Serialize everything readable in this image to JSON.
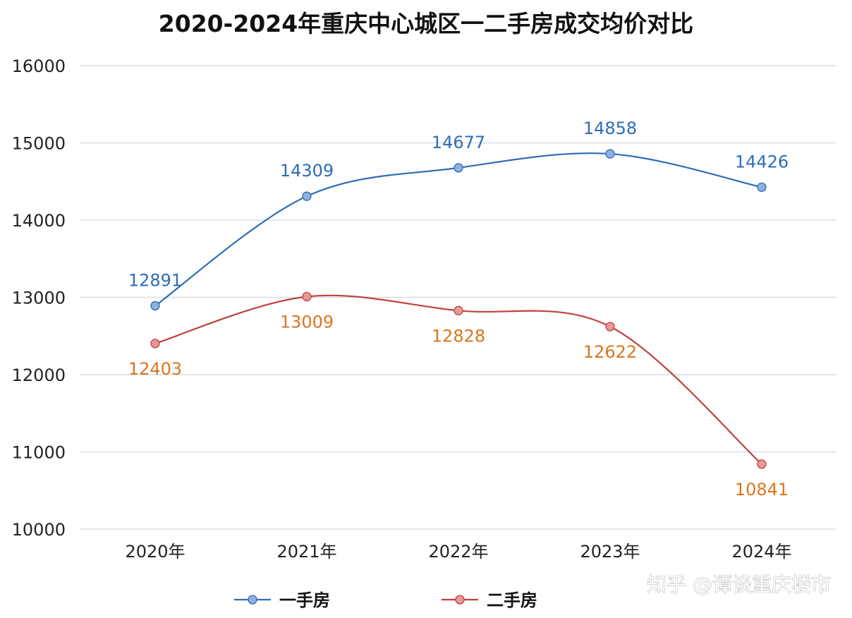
{
  "chart_data": {
    "type": "line",
    "title": "2020-2024年重庆中心城区一二手房成交均价对比",
    "categories": [
      "2020年",
      "2021年",
      "2022年",
      "2023年",
      "2024年"
    ],
    "ylim": [
      10000,
      16000
    ],
    "yticks": [
      "10000",
      "11000",
      "12000",
      "13000",
      "14000",
      "15000",
      "16000"
    ],
    "grid": true,
    "legend_position": "bottom",
    "series": [
      {
        "name": "一手房",
        "values": [
          12891,
          14309,
          14677,
          14858,
          14426
        ],
        "color": "#2e6db4",
        "marker_color": "#8fb0e0",
        "label_color": "#2e6db4",
        "label_position": "above"
      },
      {
        "name": "二手房",
        "values": [
          12403,
          13009,
          12828,
          12622,
          10841
        ],
        "color": "#c0413d",
        "marker_color": "#e59a9a",
        "label_color": "#d9761f",
        "label_position": "below"
      }
    ]
  },
  "watermark": "知乎 @谭谈重庆楼市"
}
